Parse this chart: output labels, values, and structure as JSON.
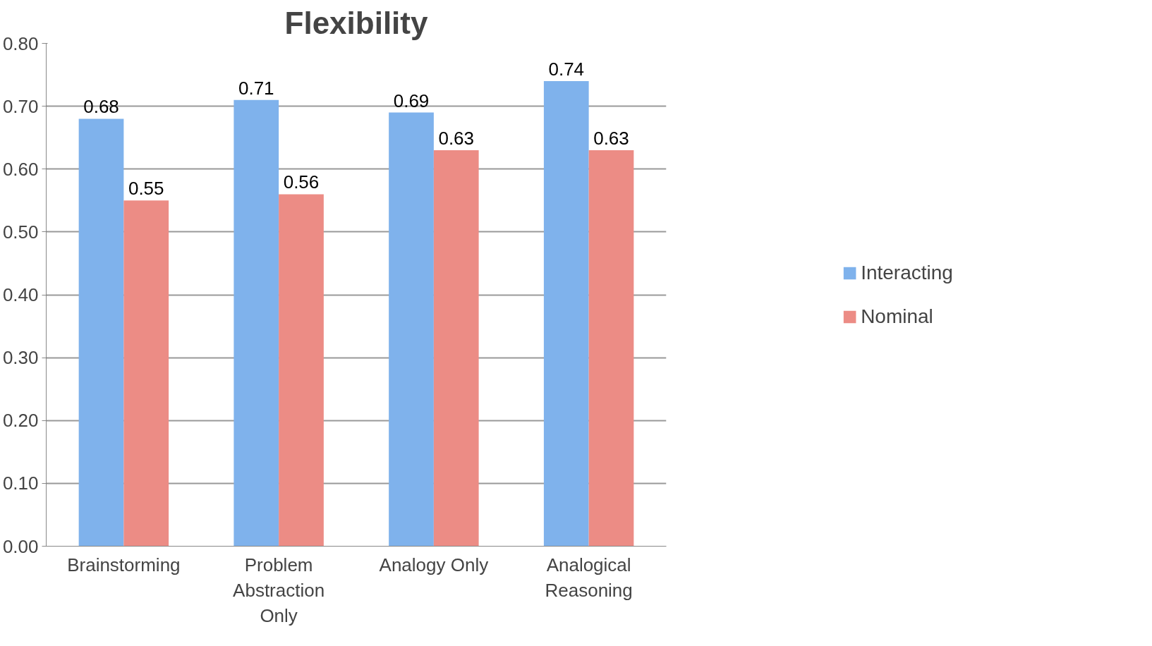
{
  "chart_data": {
    "type": "bar",
    "title": "Flexibility",
    "categories": [
      "Brainstorming",
      "Problem Abstraction Only",
      "Analogy Only",
      "Analogical Reasoning"
    ],
    "series": [
      {
        "name": "Interacting",
        "color": "#7fb2ec",
        "values": [
          0.68,
          0.71,
          0.69,
          0.74
        ]
      },
      {
        "name": "Nominal",
        "color": "#ec8c85",
        "values": [
          0.55,
          0.56,
          0.63,
          0.63
        ]
      }
    ],
    "ylim": [
      0,
      0.8
    ],
    "yticks": [
      {
        "value": 0,
        "label": "0.00"
      },
      {
        "value": 0.1,
        "label": "0.10"
      },
      {
        "value": 0.2,
        "label": "0.20"
      },
      {
        "value": 0.3,
        "label": "0.30"
      },
      {
        "value": 0.4,
        "label": "0.40"
      },
      {
        "value": 0.5,
        "label": "0.50"
      },
      {
        "value": 0.6,
        "label": "0.60"
      },
      {
        "value": 0.7,
        "label": "0.70"
      },
      {
        "value": 0.8,
        "label": "0.80"
      }
    ],
    "grid": "y",
    "legend": "right",
    "data_labels": true
  }
}
